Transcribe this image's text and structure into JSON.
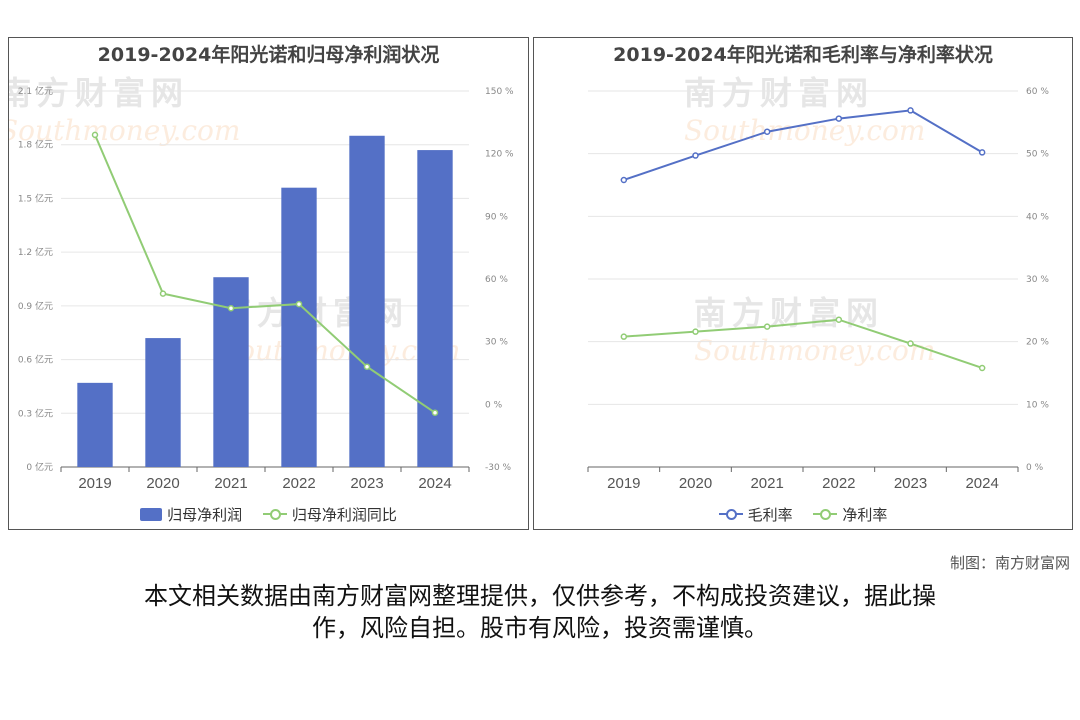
{
  "credit": "制图：南方财富网",
  "disclaimer_line1": "本文相关数据由南方财富网整理提供，仅供参考，不构成投资建议，据此操",
  "disclaimer_line2": "作，风险自担。股市有风险，投资需谨慎。",
  "watermark": {
    "cn": "南方财富网",
    "en": "Southmoney.com"
  },
  "colors": {
    "bar": "#5470c6",
    "green": "#91cc75",
    "blue": "#5470c6",
    "axis": "#333333",
    "grid": "#e6e6e6"
  },
  "chart_data": [
    {
      "type": "bar",
      "title": "2019-2024年阳光诺和归母净利润状况",
      "categories": [
        "2019",
        "2020",
        "2021",
        "2022",
        "2023",
        "2024"
      ],
      "series": [
        {
          "name": "归母净利润",
          "type": "bar",
          "axis": "left",
          "values": [
            0.47,
            0.72,
            1.06,
            1.56,
            1.85,
            1.77
          ]
        },
        {
          "name": "归母净利润同比",
          "type": "line",
          "axis": "right",
          "values": [
            129,
            53,
            46,
            48,
            18,
            -4
          ]
        }
      ],
      "left_axis": {
        "ticks": [
          "0 亿元",
          "0.3 亿元",
          "0.6 亿元",
          "0.9 亿元",
          "1.2 亿元",
          "1.5 亿元",
          "1.8 亿元",
          "2.1 亿元"
        ],
        "range": [
          0,
          2.1
        ]
      },
      "right_axis": {
        "ticks": [
          "-30 %",
          "0 %",
          "30 %",
          "60 %",
          "90 %",
          "120 %",
          "150 %"
        ],
        "range": [
          -30,
          150
        ]
      },
      "grid": true,
      "legend_position": "bottom"
    },
    {
      "type": "line",
      "title": "2019-2024年阳光诺和毛利率与净利率状况",
      "categories": [
        "2019",
        "2020",
        "2021",
        "2022",
        "2023",
        "2024"
      ],
      "series": [
        {
          "name": "毛利率",
          "values": [
            45.8,
            49.7,
            53.5,
            55.6,
            56.9,
            50.2
          ]
        },
        {
          "name": "净利率",
          "values": [
            20.8,
            21.6,
            22.4,
            23.5,
            19.7,
            15.8
          ]
        }
      ],
      "right_axis": {
        "ticks": [
          "0 %",
          "10 %",
          "20 %",
          "30 %",
          "40 %",
          "50 %",
          "60 %"
        ],
        "range": [
          0,
          60
        ]
      },
      "grid": true,
      "legend_position": "bottom"
    }
  ]
}
